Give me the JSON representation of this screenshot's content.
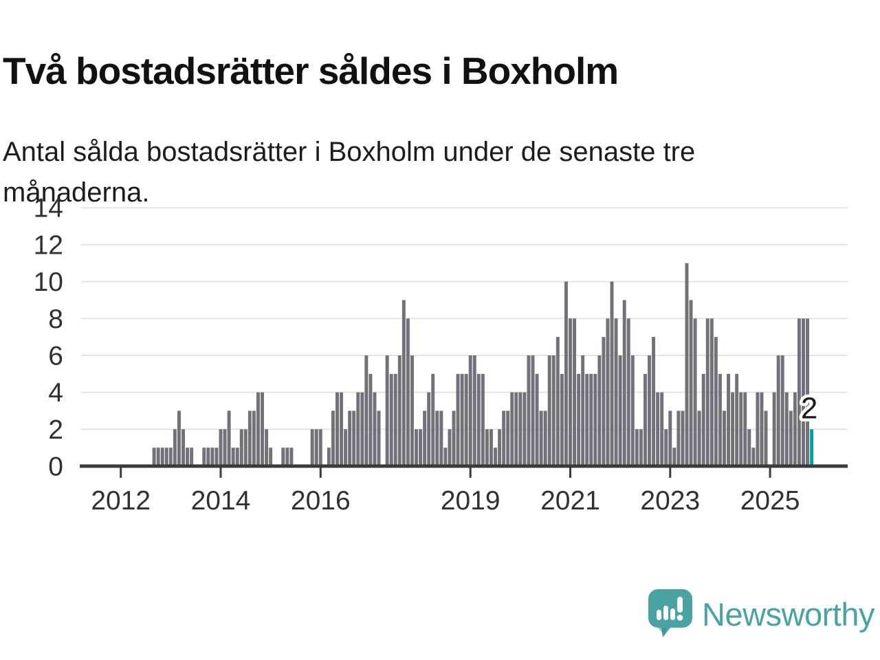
{
  "header": {
    "title": "Två bostadsrätter såldes i Boxholm",
    "subtitle": "Antal sålda bostadsrätter i Boxholm under de senaste tre månaderna."
  },
  "chart_data": {
    "type": "bar",
    "title": "Två bostadsrätter såldes i Boxholm",
    "subtitle": "Antal sålda bostadsrätter i Boxholm under de senaste tre månaderna.",
    "xlabel": "",
    "ylabel": "",
    "ylim": [
      0,
      14
    ],
    "yticks": [
      0,
      2,
      4,
      6,
      8,
      10,
      12,
      14
    ],
    "xtick_years": [
      2012,
      2014,
      2016,
      2019,
      2021,
      2023,
      2025
    ],
    "grid": true,
    "frequency": "monthly",
    "start_month": "2011-04",
    "end_month": "2025-11",
    "series": [
      {
        "year": 2011,
        "from_month": 4,
        "values": [
          0,
          0,
          0,
          0,
          0,
          0,
          0,
          0,
          0
        ]
      },
      {
        "year": 2012,
        "from_month": 1,
        "values": [
          0,
          0,
          0,
          0,
          0,
          0,
          0,
          0,
          1,
          1,
          1,
          1
        ]
      },
      {
        "year": 2013,
        "from_month": 1,
        "values": [
          1,
          2,
          3,
          2,
          1,
          1,
          0,
          0,
          1,
          1,
          1,
          1
        ]
      },
      {
        "year": 2014,
        "from_month": 1,
        "values": [
          2,
          2,
          3,
          1,
          1,
          2,
          2,
          3,
          3,
          4,
          4,
          2
        ]
      },
      {
        "year": 2015,
        "from_month": 1,
        "values": [
          1,
          0,
          0,
          1,
          1,
          1,
          0,
          0,
          0,
          0,
          2,
          2
        ]
      },
      {
        "year": 2016,
        "from_month": 1,
        "values": [
          2,
          0,
          1,
          3,
          4,
          4,
          2,
          3,
          3,
          4,
          4,
          6
        ]
      },
      {
        "year": 2017,
        "from_month": 1,
        "values": [
          5,
          4,
          3,
          0,
          6,
          5,
          5,
          6,
          9,
          8,
          6,
          2
        ]
      },
      {
        "year": 2018,
        "from_month": 1,
        "values": [
          2,
          3,
          4,
          5,
          3,
          3,
          1,
          2,
          3,
          5,
          5,
          5
        ]
      },
      {
        "year": 2019,
        "from_month": 1,
        "values": [
          6,
          6,
          5,
          5,
          2,
          2,
          1,
          2,
          3,
          3,
          4,
          4
        ]
      },
      {
        "year": 2020,
        "from_month": 1,
        "values": [
          4,
          4,
          6,
          6,
          5,
          3,
          3,
          6,
          6,
          7,
          5,
          10
        ]
      },
      {
        "year": 2021,
        "from_month": 1,
        "values": [
          8,
          8,
          5,
          6,
          5,
          5,
          5,
          6,
          7,
          8,
          10,
          8
        ]
      },
      {
        "year": 2022,
        "from_month": 1,
        "values": [
          6,
          9,
          8,
          6,
          2,
          2,
          5,
          6,
          7,
          4,
          4,
          2
        ]
      },
      {
        "year": 2023,
        "from_month": 1,
        "values": [
          3,
          1,
          3,
          3,
          11,
          9,
          8,
          3,
          5,
          8,
          8,
          7
        ]
      },
      {
        "year": 2024,
        "from_month": 1,
        "values": [
          5,
          3,
          5,
          4,
          5,
          4,
          4,
          2,
          1,
          4,
          4,
          3
        ]
      },
      {
        "year": 2025,
        "from_month": 1,
        "values": [
          0,
          4,
          6,
          6,
          4,
          3,
          4,
          8,
          8,
          8,
          2
        ]
      }
    ],
    "highlight": {
      "month": "2025-11",
      "value": 2,
      "label": "2"
    },
    "colors": {
      "bar": "#71717a",
      "highlight_bar": "#00a0a0",
      "grid": "#e4e4e4",
      "axis": "#3b3b3b",
      "tick_label": "#303030",
      "value_label": "#1a1a1a"
    },
    "legend": null
  },
  "footer": {
    "brand": "Newsworthy",
    "logo_icon": "newsworthy-chart-bubble-icon",
    "brand_color": "#48a3a2"
  }
}
